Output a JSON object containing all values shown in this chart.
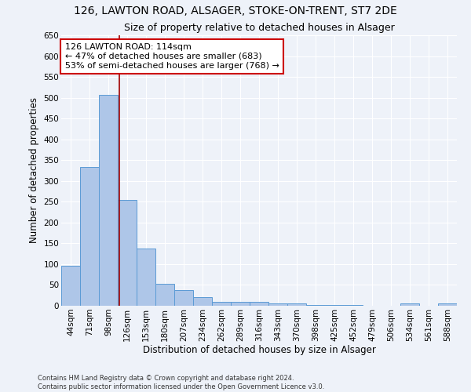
{
  "title_line1": "126, LAWTON ROAD, ALSAGER, STOKE-ON-TRENT, ST7 2DE",
  "title_line2": "Size of property relative to detached houses in Alsager",
  "xlabel": "Distribution of detached houses by size in Alsager",
  "ylabel": "Number of detached properties",
  "categories": [
    "44sqm",
    "71sqm",
    "98sqm",
    "126sqm",
    "153sqm",
    "180sqm",
    "207sqm",
    "234sqm",
    "262sqm",
    "289sqm",
    "316sqm",
    "343sqm",
    "370sqm",
    "398sqm",
    "425sqm",
    "452sqm",
    "479sqm",
    "506sqm",
    "534sqm",
    "561sqm",
    "588sqm"
  ],
  "values": [
    97,
    334,
    506,
    255,
    138,
    53,
    37,
    21,
    10,
    10,
    10,
    6,
    5,
    1,
    1,
    1,
    0,
    0,
    5,
    0,
    5
  ],
  "bar_color": "#aec6e8",
  "bar_edge_color": "#5b9bd5",
  "highlight_line_color": "#a00000",
  "annotation_text": "126 LAWTON ROAD: 114sqm\n← 47% of detached houses are smaller (683)\n53% of semi-detached houses are larger (768) →",
  "annotation_box_color": "#ffffff",
  "annotation_box_edge_color": "#cc0000",
  "ylim": [
    0,
    650
  ],
  "yticks": [
    0,
    50,
    100,
    150,
    200,
    250,
    300,
    350,
    400,
    450,
    500,
    550,
    600,
    650
  ],
  "footer_line1": "Contains HM Land Registry data © Crown copyright and database right 2024.",
  "footer_line2": "Contains public sector information licensed under the Open Government Licence v3.0.",
  "background_color": "#eef2f9",
  "grid_color": "#ffffff",
  "title_fontsize": 10,
  "subtitle_fontsize": 9,
  "axis_label_fontsize": 8.5,
  "tick_fontsize": 7.5,
  "annotation_fontsize": 8,
  "footer_fontsize": 6
}
